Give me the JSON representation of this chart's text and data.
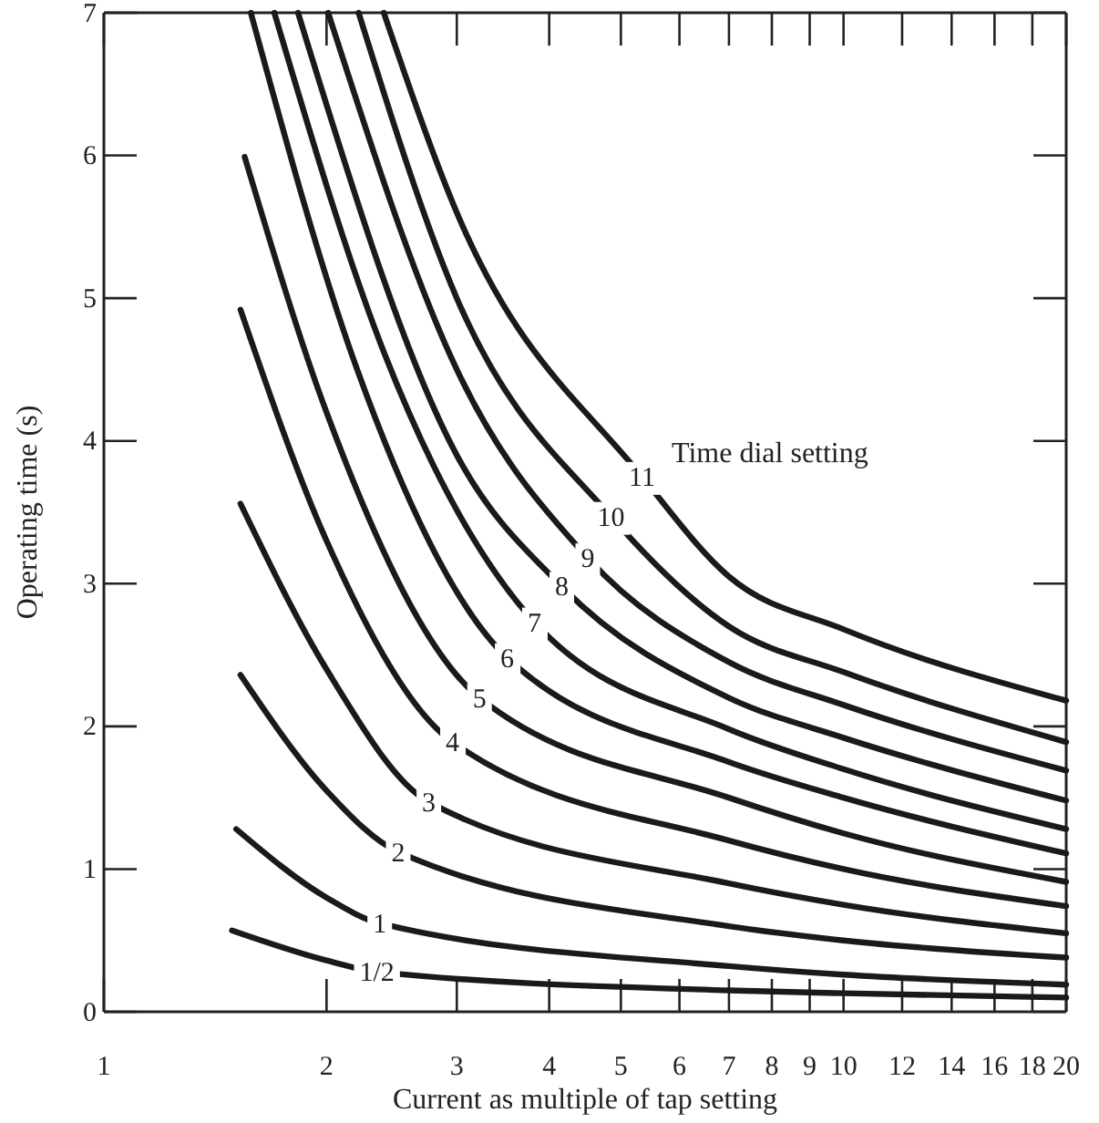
{
  "chart_data": {
    "type": "line",
    "xlabel": "Current as multiple of tap setting",
    "ylabel": "Operating time (s)",
    "annotations": [
      "Time dial setting"
    ],
    "log": "x",
    "xlim": [
      1,
      20
    ],
    "ylim": [
      0,
      7
    ],
    "xticks": [
      1,
      2,
      3,
      4,
      5,
      6,
      7,
      8,
      9,
      10,
      12,
      14,
      16,
      18,
      20
    ],
    "yticks": [
      0,
      1,
      2,
      3,
      4,
      5,
      6,
      7
    ],
    "grid": false,
    "legend": false,
    "marker": "none",
    "line_style": "solid",
    "series": [
      {
        "name": "1/2",
        "color": "#1a1a1a",
        "x": [
          1.49,
          2,
          2.34,
          7,
          10,
          20
        ],
        "values": [
          0.57,
          0.36,
          0.28,
          0.15,
          0.13,
          0.1
        ]
      },
      {
        "name": "1",
        "color": "#1a1a1a",
        "x": [
          1.51,
          2,
          2.36,
          7,
          10,
          20
        ],
        "values": [
          1.28,
          0.8,
          0.62,
          0.32,
          0.26,
          0.19
        ]
      },
      {
        "name": "2",
        "color": "#1a1a1a",
        "x": [
          1.53,
          2,
          2.5,
          7,
          10,
          20
        ],
        "values": [
          2.36,
          1.55,
          1.12,
          0.6,
          0.5,
          0.38
        ]
      },
      {
        "name": "3",
        "color": "#1a1a1a",
        "x": [
          1.53,
          2,
          2.75,
          7,
          10,
          20
        ],
        "values": [
          3.56,
          2.4,
          1.47,
          0.9,
          0.75,
          0.55
        ]
      },
      {
        "name": "4",
        "color": "#1a1a1a",
        "x": [
          1.53,
          2,
          2.96,
          7,
          10,
          20
        ],
        "values": [
          4.92,
          3.3,
          1.89,
          1.2,
          1.0,
          0.74
        ]
      },
      {
        "name": "5",
        "color": "#1a1a1a",
        "x": [
          1.55,
          2,
          3.22,
          7,
          10,
          20
        ],
        "values": [
          5.99,
          4.2,
          2.2,
          1.5,
          1.25,
          0.91
        ]
      },
      {
        "name": "6",
        "color": "#1a1a1a",
        "x": [
          1.58,
          2.2,
          3.51,
          7,
          10,
          20
        ],
        "values": [
          7,
          4.5,
          2.48,
          1.75,
          1.5,
          1.11
        ]
      },
      {
        "name": "7",
        "color": "#1a1a1a",
        "x": [
          1.7,
          2.4,
          3.82,
          7,
          10,
          20
        ],
        "values": [
          7,
          4.6,
          2.73,
          1.98,
          1.7,
          1.28
        ]
      },
      {
        "name": "8",
        "color": "#1a1a1a",
        "x": [
          1.83,
          3,
          4.16,
          7,
          10,
          20
        ],
        "values": [
          7,
          3.9,
          2.98,
          2.2,
          1.92,
          1.48
        ]
      },
      {
        "name": "9",
        "color": "#1a1a1a",
        "x": [
          2.01,
          3,
          4.51,
          7,
          10,
          20
        ],
        "values": [
          7,
          4.5,
          3.18,
          2.45,
          2.15,
          1.69
        ]
      },
      {
        "name": "10",
        "color": "#1a1a1a",
        "x": [
          2.21,
          3,
          4.85,
          7,
          10,
          20
        ],
        "values": [
          7,
          5.0,
          3.47,
          2.7,
          2.38,
          1.89
        ]
      },
      {
        "name": "11",
        "color": "#1a1a1a",
        "x": [
          2.39,
          3,
          5.34,
          7,
          10,
          20
        ],
        "values": [
          7,
          5.6,
          3.75,
          3.05,
          2.68,
          2.18
        ]
      }
    ]
  }
}
